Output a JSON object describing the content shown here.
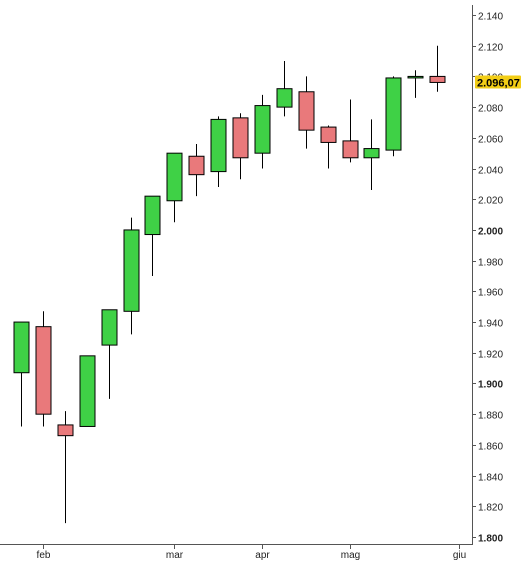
{
  "chart_data": {
    "type": "candlestick",
    "title": "",
    "xlabel": "",
    "ylabel": "",
    "ylim": [
      1800,
      2140
    ],
    "y_ticks": [
      {
        "value": 2140,
        "label": "2.140"
      },
      {
        "value": 2120,
        "label": "2.120"
      },
      {
        "value": 2100,
        "label": "2.100"
      },
      {
        "value": 2080,
        "label": "2.080"
      },
      {
        "value": 2060,
        "label": "2.060"
      },
      {
        "value": 2040,
        "label": "2.040"
      },
      {
        "value": 2020,
        "label": "2.020"
      },
      {
        "value": 2000,
        "label": "2.000"
      },
      {
        "value": 1980,
        "label": "1.980"
      },
      {
        "value": 1960,
        "label": "1.960"
      },
      {
        "value": 1940,
        "label": "1.940"
      },
      {
        "value": 1920,
        "label": "1.920"
      },
      {
        "value": 1900,
        "label": "1.900"
      },
      {
        "value": 1880,
        "label": "1.880"
      },
      {
        "value": 1860,
        "label": "1.860"
      },
      {
        "value": 1840,
        "label": "1.840"
      },
      {
        "value": 1820,
        "label": "1.820"
      },
      {
        "value": 1800,
        "label": "1.800"
      }
    ],
    "bold_ticks": [
      2000,
      1900,
      1800
    ],
    "x_labels": [
      {
        "index": 1,
        "label": "feb"
      },
      {
        "index": 7,
        "label": "mar"
      },
      {
        "index": 11,
        "label": "apr"
      },
      {
        "index": 15,
        "label": "mag"
      },
      {
        "index": 20,
        "label": "giu"
      }
    ],
    "candles": [
      {
        "open": 1907,
        "high": 1940,
        "low": 1872,
        "close": 1940
      },
      {
        "open": 1937,
        "high": 1947,
        "low": 1872,
        "close": 1880
      },
      {
        "open": 1873,
        "high": 1882,
        "low": 1809,
        "close": 1866
      },
      {
        "open": 1872,
        "high": 1918,
        "low": 1872,
        "close": 1918
      },
      {
        "open": 1925,
        "high": 1948,
        "low": 1890,
        "close": 1948
      },
      {
        "open": 1947,
        "high": 2008,
        "low": 1932,
        "close": 2000
      },
      {
        "open": 1997,
        "high": 2022,
        "low": 1970,
        "close": 2022
      },
      {
        "open": 2019,
        "high": 2050,
        "low": 2005,
        "close": 2050
      },
      {
        "open": 2048,
        "high": 2056,
        "low": 2022,
        "close": 2036
      },
      {
        "open": 2038,
        "high": 2074,
        "low": 2028,
        "close": 2072
      },
      {
        "open": 2073,
        "high": 2076,
        "low": 2033,
        "close": 2047
      },
      {
        "open": 2050,
        "high": 2088,
        "low": 2040,
        "close": 2081
      },
      {
        "open": 2080,
        "high": 2110,
        "low": 2074,
        "close": 2092
      },
      {
        "open": 2090,
        "high": 2100,
        "low": 2053,
        "close": 2065
      },
      {
        "open": 2067,
        "high": 2068,
        "low": 2040,
        "close": 2057
      },
      {
        "open": 2058,
        "high": 2085,
        "low": 2044,
        "close": 2047
      },
      {
        "open": 2047,
        "high": 2072,
        "low": 2026,
        "close": 2053
      },
      {
        "open": 2052,
        "high": 2100,
        "low": 2048,
        "close": 2099
      },
      {
        "open": 2099,
        "high": 2104,
        "low": 2086,
        "close": 2100
      },
      {
        "open": 2100,
        "high": 2120,
        "low": 2090,
        "close": 2096.07
      }
    ],
    "last_value": 2096.07,
    "last_value_label": "2.096,07",
    "colors": {
      "up_fill": "#3fd146",
      "down_fill": "#e9797b",
      "candle_border": "#000000",
      "last_value_bg": "#f2cd16",
      "axis": "#555555",
      "tick_text": "#222222"
    }
  }
}
